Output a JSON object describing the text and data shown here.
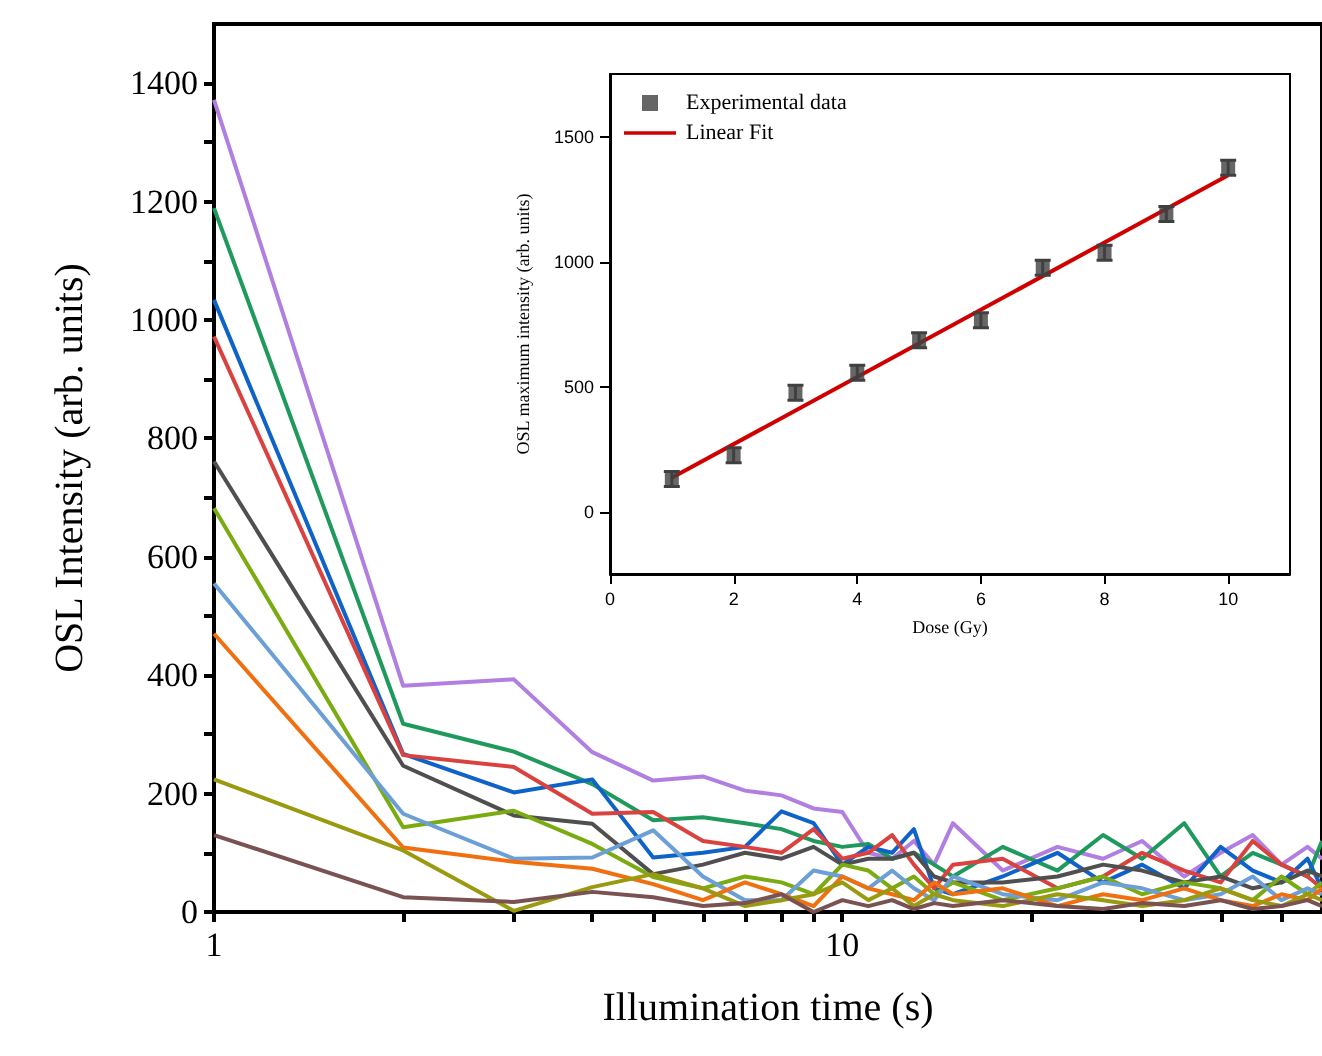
{
  "chart_data": [
    {
      "type": "line",
      "xlabel": "Illumination time (s)",
      "ylabel": "OSL Intensity (arb. units)",
      "log": "x",
      "x": [
        1,
        2,
        3,
        4,
        5,
        6,
        7,
        8,
        9,
        10,
        11,
        12,
        13,
        14,
        15,
        18,
        22,
        26,
        30,
        35,
        40,
        45,
        50,
        55,
        58
      ],
      "xlim": [
        1,
        58
      ],
      "xticks": [
        1,
        {
          "value": 2,
          "label": null
        },
        {
          "value": 3,
          "label": null
        },
        {
          "value": 4,
          "label": null
        },
        {
          "value": 5,
          "label": null
        },
        {
          "value": 6,
          "label": null
        },
        {
          "value": 7,
          "label": null
        },
        {
          "value": 8,
          "label": null
        },
        {
          "value": 9,
          "label": null
        },
        10,
        {
          "value": 20,
          "label": null
        },
        {
          "value": 30,
          "label": null
        },
        {
          "value": 40,
          "label": null
        },
        {
          "value": 50,
          "label": null
        }
      ],
      "ylim": [
        0,
        1500
      ],
      "yticks": [
        0,
        {
          "value": 100,
          "label": null
        },
        200,
        {
          "value": 300,
          "label": null
        },
        400,
        {
          "value": 500,
          "label": null
        },
        600,
        {
          "value": 700,
          "label": null
        },
        800,
        {
          "value": 900,
          "label": null
        },
        1000,
        {
          "value": 1100,
          "label": null
        },
        1200,
        {
          "value": 1300,
          "label": null
        },
        1400
      ],
      "grid": false,
      "legend": false,
      "marker": "none",
      "line_style": "solid",
      "series": [
        {
          "color": "#b07fe0",
          "values": [
            1372,
            382,
            393,
            270,
            222,
            229,
            205,
            197,
            175,
            169,
            100,
            90,
            120,
            80,
            150,
            70,
            110,
            90,
            120,
            60,
            100,
            130,
            80,
            110,
            90
          ]
        },
        {
          "color": "#1f9a5c",
          "values": [
            1189,
            318,
            271,
            216,
            155,
            160,
            150,
            140,
            120,
            110,
            115,
            90,
            100,
            80,
            60,
            110,
            70,
            130,
            90,
            150,
            60,
            100,
            80,
            60,
            120
          ]
        },
        {
          "color": "#0f62c8",
          "values": [
            1034,
            267,
            202,
            224,
            92,
            100,
            110,
            170,
            150,
            80,
            110,
            100,
            140,
            40,
            30,
            60,
            100,
            50,
            80,
            40,
            110,
            70,
            50,
            90,
            40
          ]
        },
        {
          "color": "#d9423f",
          "values": [
            972,
            265,
            245,
            166,
            169,
            120,
            110,
            100,
            140,
            90,
            100,
            130,
            80,
            40,
            80,
            90,
            40,
            60,
            100,
            70,
            50,
            120,
            80,
            60,
            40
          ]
        },
        {
          "color": "#4f4f4f",
          "values": [
            761,
            247,
            163,
            149,
            64,
            80,
            100,
            90,
            110,
            80,
            90,
            90,
            100,
            60,
            50,
            50,
            60,
            80,
            70,
            50,
            60,
            40,
            50,
            70,
            60
          ]
        },
        {
          "color": "#7aab10",
          "values": [
            682,
            143,
            171,
            115,
            59,
            40,
            60,
            50,
            30,
            80,
            70,
            40,
            60,
            30,
            50,
            20,
            40,
            60,
            30,
            50,
            40,
            20,
            60,
            30,
            50
          ]
        },
        {
          "color": "#6b9fd6",
          "values": [
            555,
            166,
            90,
            92,
            138,
            60,
            20,
            20,
            70,
            60,
            40,
            70,
            40,
            20,
            60,
            30,
            20,
            50,
            40,
            20,
            30,
            60,
            20,
            40,
            30
          ]
        },
        {
          "color": "#f07010",
          "values": [
            470,
            109,
            85,
            73,
            47,
            20,
            50,
            30,
            10,
            60,
            40,
            30,
            20,
            50,
            30,
            40,
            10,
            30,
            20,
            40,
            20,
            10,
            30,
            20,
            40
          ]
        },
        {
          "color": "#9a9a10",
          "values": [
            224,
            104,
            2,
            42,
            64,
            40,
            10,
            20,
            30,
            50,
            20,
            40,
            10,
            30,
            20,
            10,
            30,
            20,
            10,
            20,
            40,
            20,
            10,
            30,
            20
          ]
        },
        {
          "color": "#7a5252",
          "values": [
            130,
            25,
            17,
            34,
            25,
            10,
            15,
            30,
            0,
            20,
            10,
            20,
            5,
            15,
            10,
            20,
            10,
            5,
            15,
            10,
            20,
            5,
            10,
            20,
            10
          ]
        }
      ]
    },
    {
      "type": "scatter",
      "xlabel": "Dose (Gy)",
      "ylabel": "OSL maximum intensity (arb. units)",
      "xlim": [
        0,
        11
      ],
      "xticks": [
        0,
        2,
        4,
        6,
        8,
        10
      ],
      "ylim": [
        -250,
        1750
      ],
      "yticks": [
        0,
        500,
        1000,
        1500
      ],
      "grid": false,
      "legend": "top left",
      "series": [
        {
          "name": "Experimental data",
          "marker": "square",
          "color": "#404040",
          "x": [
            1,
            2,
            3,
            4,
            5,
            6,
            7,
            8,
            9,
            10
          ],
          "values": [
            130,
            225,
            475,
            555,
            685,
            765,
            975,
            1035,
            1190,
            1375
          ],
          "errors": [
            30,
            30,
            30,
            30,
            30,
            30,
            30,
            30,
            30,
            30
          ]
        },
        {
          "name": "Linear Fit",
          "type": "line",
          "marker": "none",
          "color": "#d00000",
          "x": [
            1,
            10
          ],
          "values": [
            135,
            1345
          ]
        }
      ]
    }
  ]
}
